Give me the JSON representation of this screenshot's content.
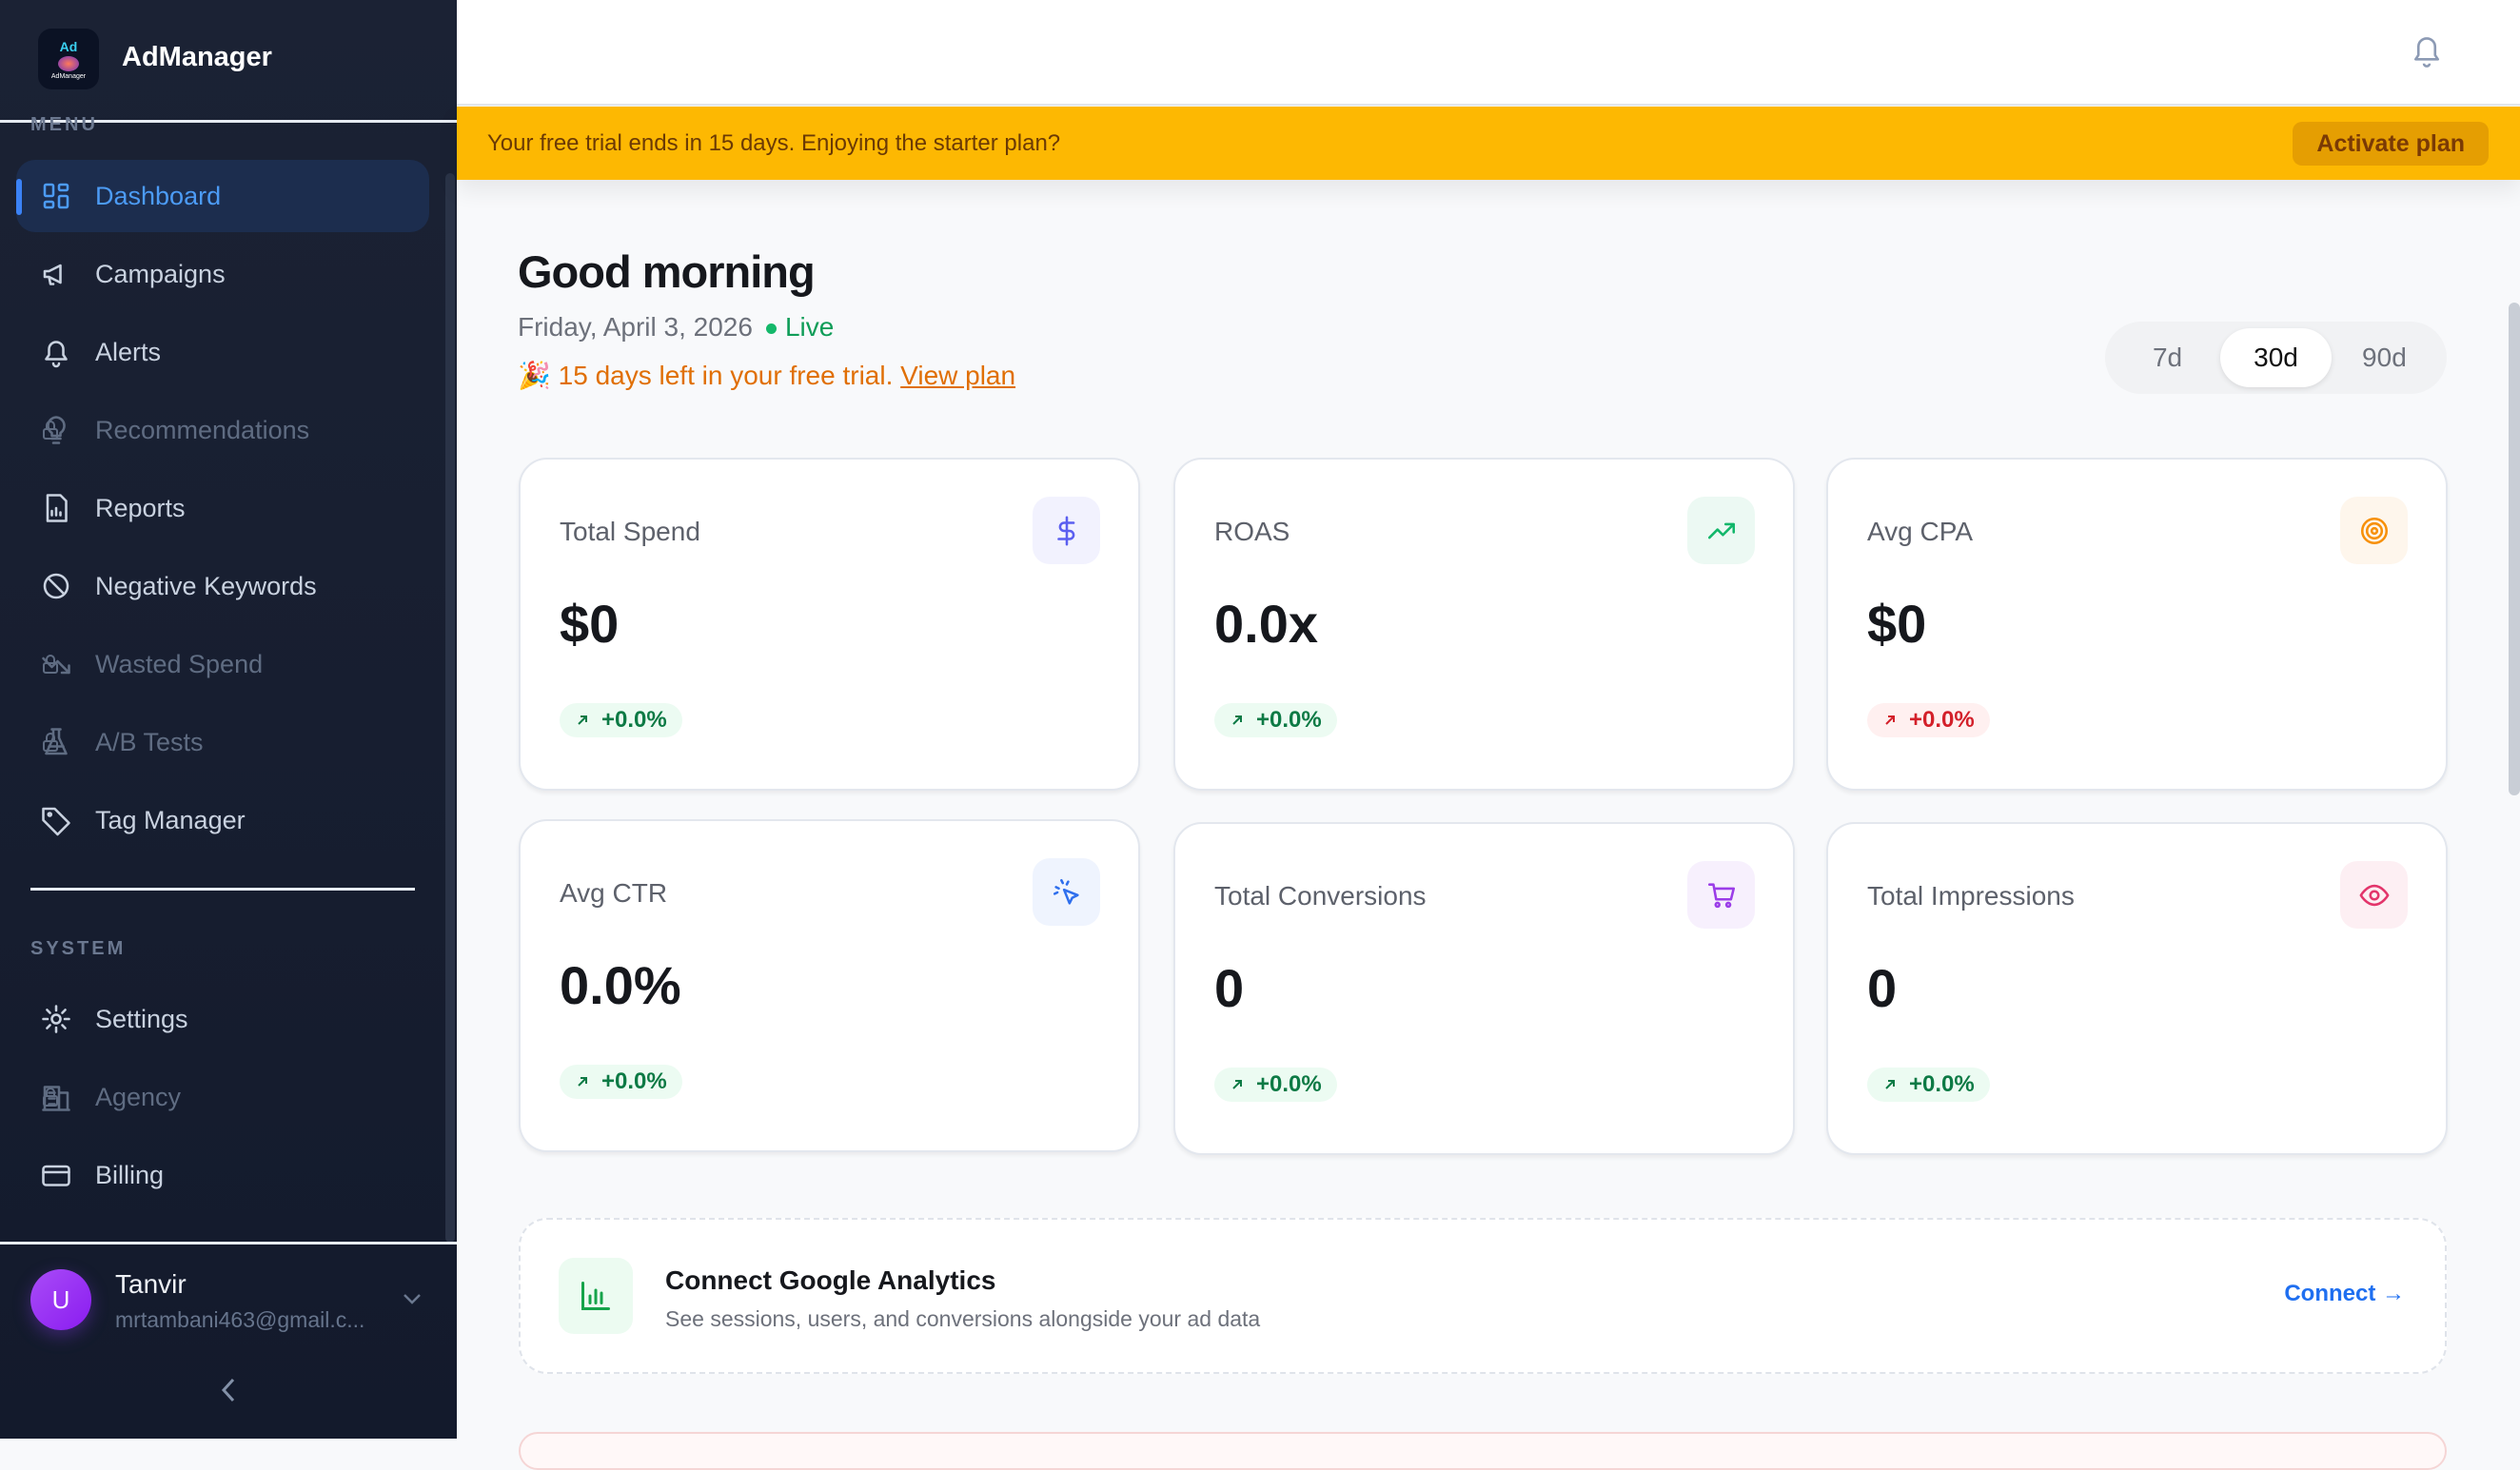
{
  "app": {
    "name": "AdManager",
    "logo_text": "Ad"
  },
  "sidebar": {
    "menu_label": "MENU",
    "items": [
      {
        "label": "Dashboard",
        "icon": "grid-icon",
        "active": true,
        "locked": false
      },
      {
        "label": "Campaigns",
        "icon": "megaphone-icon",
        "locked": false
      },
      {
        "label": "Alerts",
        "icon": "bell-icon",
        "locked": false
      },
      {
        "label": "Recommendations",
        "icon": "lightbulb-icon",
        "locked": true
      },
      {
        "label": "Reports",
        "icon": "report-icon",
        "locked": false
      },
      {
        "label": "Negative Keywords",
        "icon": "ban-icon",
        "locked": false
      },
      {
        "label": "Wasted Spend",
        "icon": "trending-down-icon",
        "locked": true
      },
      {
        "label": "A/B Tests",
        "icon": "flask-icon",
        "locked": true
      },
      {
        "label": "Tag Manager",
        "icon": "tag-icon",
        "locked": false
      }
    ],
    "system_label": "SYSTEM",
    "system_items": [
      {
        "label": "Settings",
        "icon": "gear-icon",
        "locked": false
      },
      {
        "label": "Agency",
        "icon": "building-icon",
        "locked": true
      },
      {
        "label": "Billing",
        "icon": "credit-card-icon",
        "locked": false
      }
    ],
    "user": {
      "initial": "U",
      "name": "Tanvir",
      "email": "mrtambani463@gmail.c..."
    }
  },
  "banner": {
    "text": "Your free trial ends in 15 days. Enjoying the starter plan?",
    "action": "Activate plan"
  },
  "main": {
    "greeting": "Good morning",
    "date": "Friday, April 3, 2026",
    "live": "Live",
    "trial_emoji": "🎉",
    "trial_text": "15 days left in your free trial.",
    "trial_link": "View plan",
    "ranges": [
      "7d",
      "30d",
      "90d"
    ],
    "selected_range": "30d"
  },
  "cards": [
    {
      "label": "Total Spend",
      "value": "$0",
      "change": "+0.0%",
      "trend": "positive",
      "icon": "dollar-icon",
      "color": "#5b5ff0"
    },
    {
      "label": "ROAS",
      "value": "0.0x",
      "change": "+0.0%",
      "trend": "positive",
      "icon": "trending-up-icon",
      "color": "#12b76a"
    },
    {
      "label": "Avg CPA",
      "value": "$0",
      "change": "+0.0%",
      "trend": "negative",
      "icon": "target-icon",
      "color": "#f79009"
    },
    {
      "label": "Avg CTR",
      "value": "0.0%",
      "change": "+0.0%",
      "trend": "positive",
      "icon": "cursor-click-icon",
      "color": "#2f6fed"
    },
    {
      "label": "Total Conversions",
      "value": "0",
      "change": "+0.0%",
      "trend": "positive",
      "icon": "cart-icon",
      "color": "#9b3de8"
    },
    {
      "label": "Total Impressions",
      "value": "0",
      "change": "+0.0%",
      "trend": "positive",
      "icon": "eye-icon",
      "color": "#e3356b"
    }
  ],
  "ga": {
    "title": "Connect Google Analytics",
    "subtitle": "See sessions, users, and conversions alongside your ad data",
    "action": "Connect →"
  }
}
